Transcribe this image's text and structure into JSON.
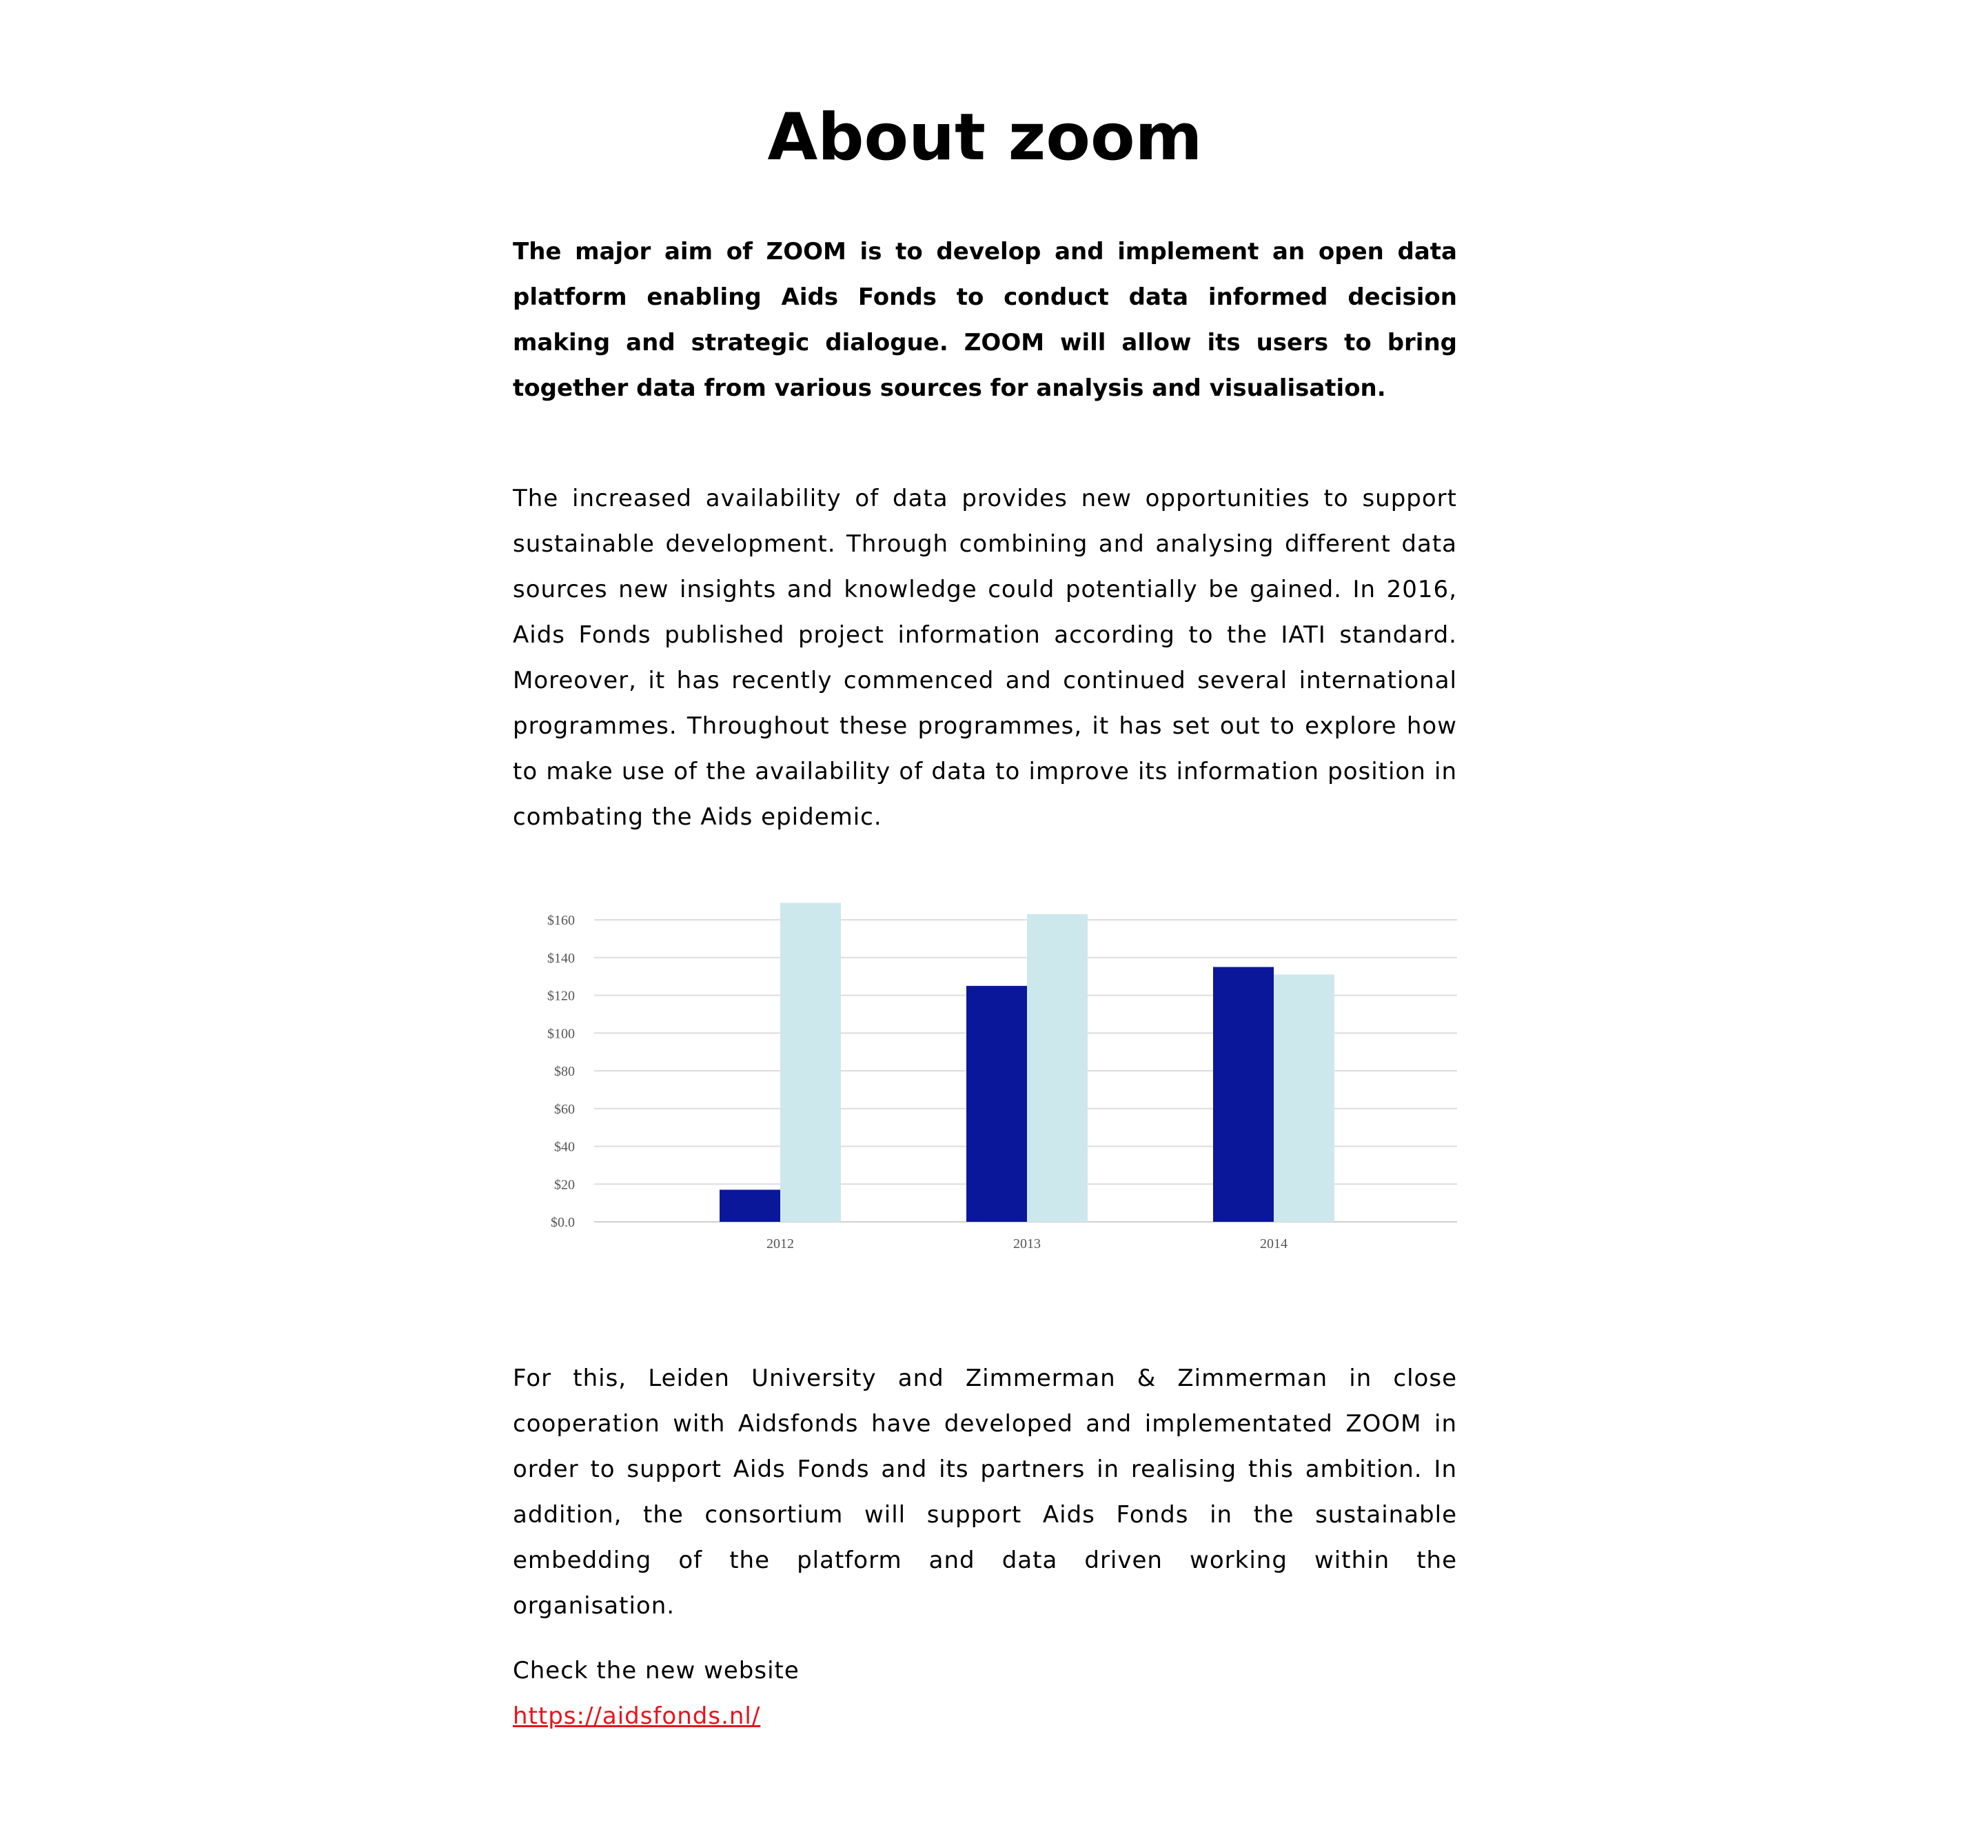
{
  "page": {
    "title": "About zoom",
    "intro": "The major aim of ZOOM is to develop and implement an open data platform enabling Aids Fonds to conduct data informed decision making and strategic dialogue. ZOOM will allow its users to bring together data from various sources for analysis and visualisation.",
    "paragraph_1": "The increased availability of data provides new opportunities to support sustainable development. Through combining and analysing different data sources new insights and knowledge could potentially be gained. In 2016, Aids Fonds published project information according to the IATI standard. Moreover, it has recently commenced and continued several international programmes. Throughout these programmes, it has set out to explore how to make use of the availability of data to improve its information position in combating the Aids epidemic.",
    "paragraph_2": "For this, Leiden University and Zimmerman & Zimmerman in close cooperation with Aidsfonds have developed and implementated ZOOM in order to support Aids Fonds and its partners in realising this ambition. In addition, the consortium will support Aids Fonds in the sustainable embedding of the platform and data driven working within the organisation.",
    "cta_text": "Check the new website",
    "link_text": "https://aidsfonds.nl/",
    "link_color": "#e8131b"
  },
  "chart_data": {
    "type": "bar",
    "categories": [
      "2012",
      "2013",
      "2014"
    ],
    "series": [
      {
        "values": [
          17,
          125,
          135
        ],
        "color": "#0b179b"
      },
      {
        "values": [
          169,
          163,
          131
        ],
        "color": "#cde8ec"
      }
    ],
    "yticks": [
      "$0.0",
      "$20",
      "$40",
      "$60",
      "$80",
      "$100",
      "$120",
      "$140",
      "$160"
    ],
    "ytick_values": [
      0,
      20,
      40,
      60,
      80,
      100,
      120,
      140,
      160
    ],
    "ylim": [
      0,
      160
    ],
    "grid": true,
    "title": "",
    "xlabel": "",
    "ylabel": ""
  }
}
